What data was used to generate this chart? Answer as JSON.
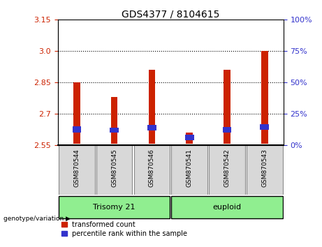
{
  "title": "GDS4377 / 8104615",
  "samples": [
    "GSM870544",
    "GSM870545",
    "GSM870546",
    "GSM870541",
    "GSM870542",
    "GSM870543"
  ],
  "red_bar_tops": [
    2.85,
    2.78,
    2.91,
    2.61,
    2.91,
    3.0
  ],
  "red_bar_bottoms": [
    2.555,
    2.555,
    2.555,
    2.555,
    2.555,
    2.555
  ],
  "blue_bar_tops": [
    2.638,
    2.632,
    2.645,
    2.598,
    2.636,
    2.65
  ],
  "blue_bar_bottoms": [
    2.61,
    2.608,
    2.618,
    2.572,
    2.61,
    2.622
  ],
  "ylim": [
    2.55,
    3.15
  ],
  "yticks_left": [
    2.55,
    2.7,
    2.85,
    3.0,
    3.15
  ],
  "yticks_right": [
    0,
    25,
    50,
    75,
    100
  ],
  "yticks_right_pos": [
    2.55,
    2.7,
    2.85,
    3.0,
    3.15
  ],
  "gridlines": [
    2.7,
    2.85,
    3.0
  ],
  "groups": [
    {
      "label": "Trisomy 21",
      "indices": [
        0,
        1,
        2
      ],
      "color": "#90EE90"
    },
    {
      "label": "euploid",
      "indices": [
        3,
        4,
        5
      ],
      "color": "#90EE90"
    }
  ],
  "group_label_text": "genotype/variation",
  "red_color": "#CC2200",
  "blue_color": "#3333CC",
  "bar_width": 0.18,
  "legend_items": [
    "transformed count",
    "percentile rank within the sample"
  ],
  "tick_bg_color": "#d8d8d8",
  "plot_bg": "#ffffff",
  "left_tick_color": "#CC2200",
  "right_tick_color": "#3333CC",
  "group_box_color": "#90EE90"
}
